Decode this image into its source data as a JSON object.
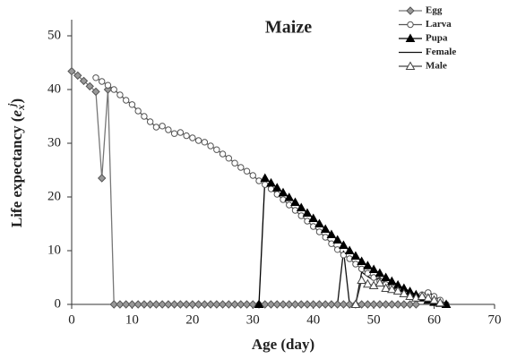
{
  "chart_data": {
    "type": "line",
    "title": "Maize",
    "xlabel": "Age (day)",
    "ylabel": {
      "text": "Life expectancy (",
      "symbol": "e",
      "sub": "x",
      "sup": "j",
      "close": ")"
    },
    "xlim": [
      0,
      70
    ],
    "xticks": [
      0,
      10,
      20,
      30,
      40,
      50,
      60,
      70
    ],
    "ylim": [
      0,
      53
    ],
    "yticks": [
      0,
      10,
      20,
      30,
      40,
      50
    ],
    "legend": "top-right",
    "series": [
      {
        "name": "Egg",
        "color": "#777777",
        "marker": "diamond",
        "x": [
          0,
          1,
          2,
          3,
          4,
          5,
          6,
          7,
          8,
          9,
          10,
          11,
          12,
          13,
          14,
          15,
          16,
          17,
          18,
          19,
          20,
          21,
          22,
          23,
          24,
          25,
          26,
          27,
          28,
          29,
          30,
          31,
          32,
          33,
          34,
          35,
          36,
          37,
          38,
          39,
          40,
          41,
          42,
          43,
          44,
          45,
          46,
          47,
          48,
          49,
          50,
          51,
          52,
          53,
          54,
          55,
          56,
          57
        ],
        "values": [
          43.4,
          42.6,
          41.6,
          40.6,
          39.6,
          23.5,
          40,
          0,
          0,
          0,
          0,
          0,
          0,
          0,
          0,
          0,
          0,
          0,
          0,
          0,
          0,
          0,
          0,
          0,
          0,
          0,
          0,
          0,
          0,
          0,
          0,
          0,
          0,
          0,
          0,
          0,
          0,
          0,
          0,
          0,
          0,
          0,
          0,
          0,
          0,
          0,
          0,
          0,
          0,
          0,
          0,
          0,
          0,
          0,
          0,
          0,
          0,
          0
        ]
      },
      {
        "name": "Larva",
        "color": "#555555",
        "marker": "circle",
        "x": [
          4,
          5,
          6,
          7,
          8,
          9,
          10,
          11,
          12,
          13,
          14,
          15,
          16,
          17,
          18,
          19,
          20,
          21,
          22,
          23,
          24,
          25,
          26,
          27,
          28,
          29,
          30,
          31,
          32,
          33,
          34,
          35,
          36,
          37,
          38,
          39,
          40,
          41,
          42,
          43,
          44,
          45,
          46,
          47,
          48,
          49,
          50,
          51,
          52,
          53,
          54,
          55,
          56,
          57,
          58,
          59,
          60,
          61,
          62
        ],
        "values": [
          42.2,
          41.5,
          40.8,
          40,
          39,
          38,
          37.2,
          36,
          35,
          34,
          33,
          33.2,
          32.5,
          31.8,
          32,
          31.4,
          31,
          30.5,
          30.2,
          29.5,
          28.8,
          28,
          27.2,
          26.3,
          25.5,
          24.8,
          24,
          23,
          22.3,
          21.5,
          20.5,
          19.5,
          18.5,
          17.5,
          16.5,
          15.5,
          14.5,
          13.5,
          12.5,
          11.3,
          10.2,
          9.2,
          8.5,
          7.5,
          6.6,
          5.8,
          5,
          4.3,
          3.7,
          3.2,
          2.7,
          2.2,
          1.8,
          1.6,
          1.8,
          2.2,
          1.5,
          0.8,
          0
        ]
      },
      {
        "name": "Pupa",
        "color": "#000000",
        "marker": "triangle",
        "x": [
          31,
          32,
          33,
          34,
          35,
          36,
          37,
          38,
          39,
          40,
          41,
          42,
          43,
          44,
          45,
          46,
          47,
          48,
          49,
          50,
          51,
          52,
          53,
          54,
          55,
          56,
          57,
          58,
          59,
          60,
          61,
          62
        ],
        "values": [
          0,
          23.5,
          22.6,
          21.7,
          20.8,
          19.9,
          19,
          18,
          17,
          16,
          15,
          14,
          13,
          12,
          11,
          10,
          9,
          8,
          7.2,
          6.5,
          5.8,
          5,
          4.3,
          3.6,
          3,
          2.4,
          1.8,
          1.2,
          0.8,
          0.4,
          0.2,
          0
        ]
      },
      {
        "name": "Female",
        "color": "#111111",
        "marker": "none",
        "x": [
          44,
          45,
          46,
          47,
          48,
          49,
          50,
          51,
          52,
          53,
          54,
          55,
          56,
          57,
          58,
          59,
          60,
          61,
          62
        ],
        "values": [
          0,
          10,
          0,
          0,
          6,
          5.2,
          4.5,
          5,
          4,
          3.5,
          3,
          2.5,
          2,
          1.5,
          1.8,
          2.5,
          1.5,
          0.8,
          0
        ]
      },
      {
        "name": "Male",
        "color": "#444444",
        "marker": "triangle-open",
        "x": [
          47,
          48,
          49,
          50,
          51,
          52,
          53,
          54,
          55,
          56,
          57,
          58,
          59,
          60,
          61
        ],
        "values": [
          0,
          4.5,
          3.8,
          3.5,
          4,
          3,
          2.8,
          2.5,
          2,
          1.5,
          1.2,
          1.5,
          1.2,
          0.8,
          0.3
        ]
      }
    ]
  }
}
